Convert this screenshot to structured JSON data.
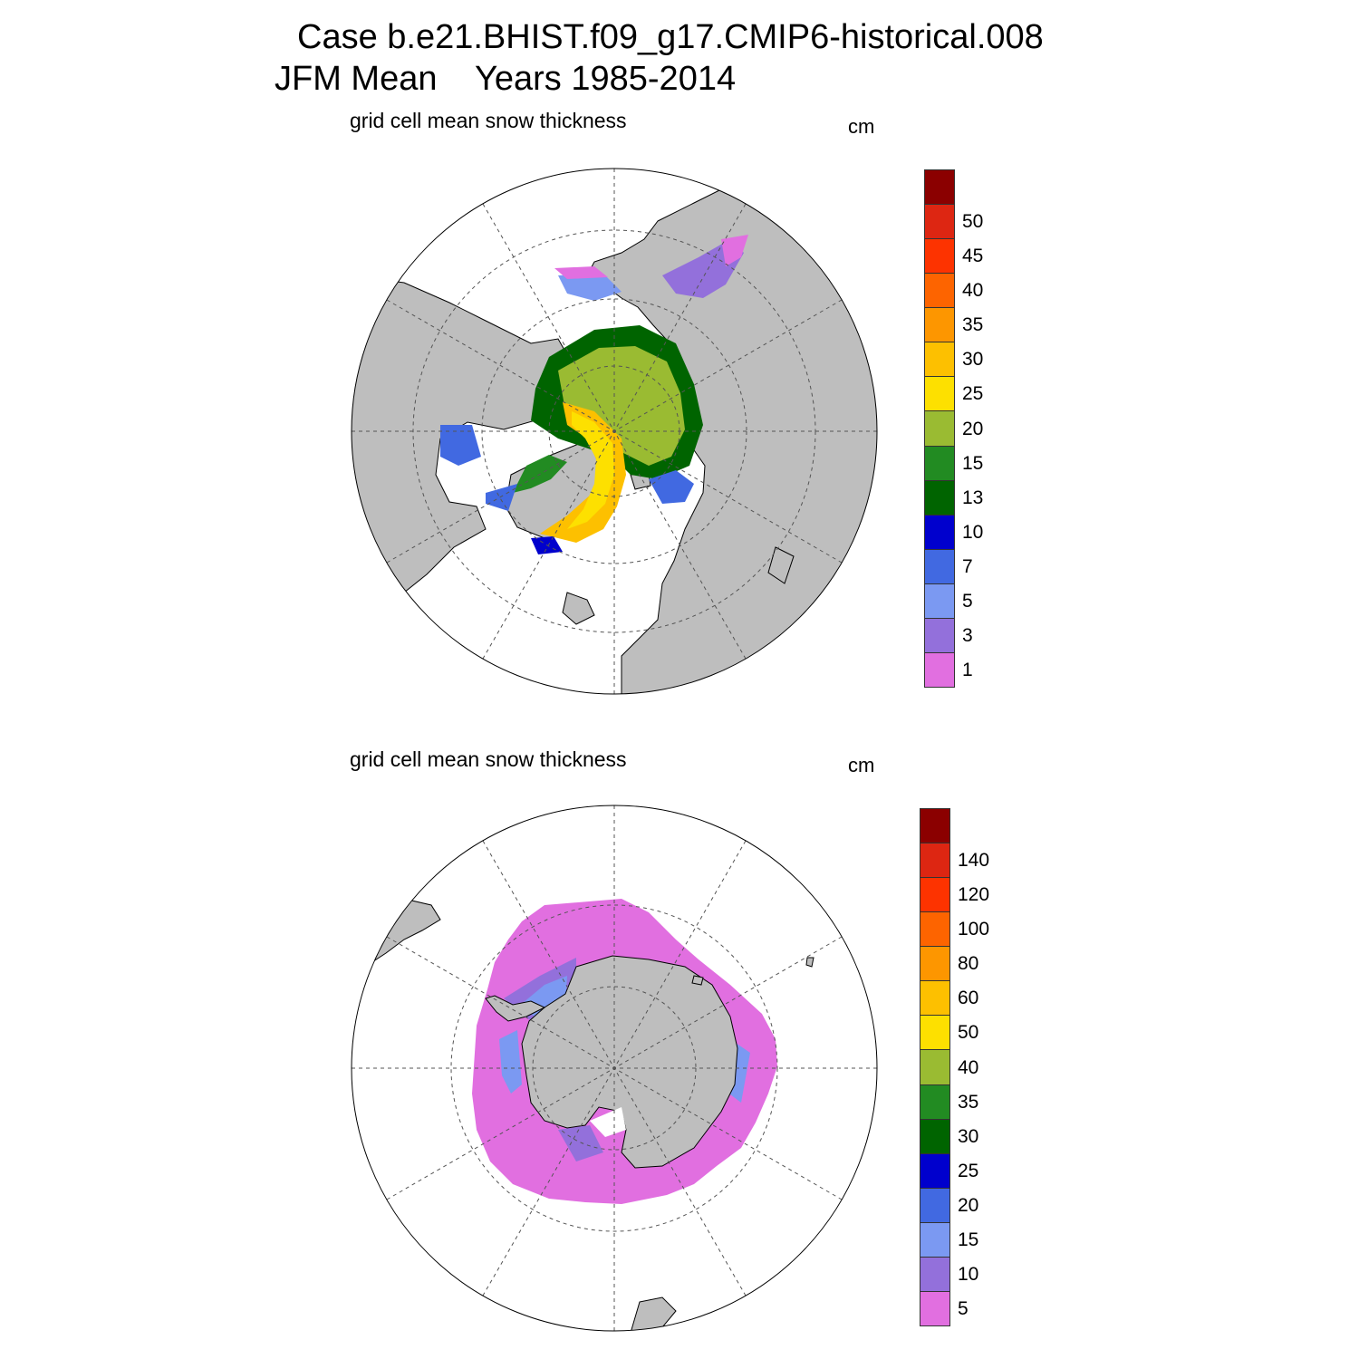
{
  "title": {
    "case": "Case b.e21.BHIST.f09_g17.CMIP6-historical.008",
    "season": "JFM Mean",
    "years": "Years 1985-2014"
  },
  "colors": {
    "land": "#bebebe",
    "ocean": "#ffffff",
    "graticule": "#555555"
  },
  "panels": [
    {
      "id": "arctic",
      "label": "grid cell mean snow thickness",
      "units": "cm",
      "hemisphere": "north",
      "colorbar": {
        "colors": [
          "#e16fe0",
          "#9370db",
          "#7b99f2",
          "#4169e1",
          "#0000cd",
          "#006400",
          "#228b22",
          "#9abb32",
          "#fde000",
          "#fdc000",
          "#fd9600",
          "#fd6400",
          "#fd3300",
          "#dd2612",
          "#8b0000"
        ],
        "levels": [
          "1",
          "3",
          "5",
          "7",
          "10",
          "13",
          "15",
          "20",
          "25",
          "30",
          "35",
          "40",
          "45",
          "50"
        ]
      }
    },
    {
      "id": "antarctic",
      "label": "grid cell mean snow thickness",
      "units": "cm",
      "hemisphere": "south",
      "colorbar": {
        "colors": [
          "#e16fe0",
          "#9370db",
          "#7b99f2",
          "#4169e1",
          "#0000cd",
          "#006400",
          "#228b22",
          "#9abb32",
          "#fde000",
          "#fdc000",
          "#fd9600",
          "#fd6400",
          "#fd3300",
          "#dd2612",
          "#8b0000"
        ],
        "levels": [
          "5",
          "10",
          "15",
          "20",
          "25",
          "30",
          "35",
          "40",
          "50",
          "60",
          "80",
          "100",
          "120",
          "140"
        ]
      }
    }
  ]
}
